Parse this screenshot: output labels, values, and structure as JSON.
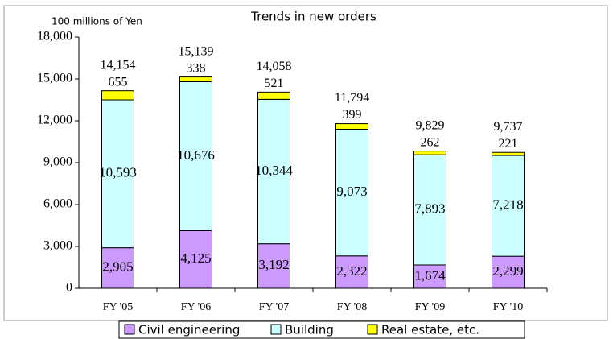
{
  "chart_data": {
    "type": "stacked_bar",
    "title": "Trends in new orders",
    "y_axis_label": "100 millions of Yen",
    "categories": [
      "FY '05",
      "FY '06",
      "FY '07",
      "FY '08",
      "FY '09",
      "FY '10"
    ],
    "series": [
      {
        "name": "Civil engineering",
        "color": "#cc99ff",
        "values": [
          2905,
          4125,
          3192,
          2322,
          1674,
          2299
        ],
        "value_labels": [
          "2,905",
          "4,125",
          "3,192",
          "2,322",
          "1,674",
          "2,299"
        ]
      },
      {
        "name": "Building",
        "color": "#ccffff",
        "values": [
          10593,
          10676,
          10344,
          9073,
          7893,
          7218
        ],
        "value_labels": [
          "10,593",
          "10,676",
          "10,344",
          "9,073",
          "7,893",
          "7,218"
        ]
      },
      {
        "name": "Real estate, etc.",
        "color": "#ffff00",
        "values": [
          655,
          338,
          521,
          399,
          262,
          221
        ]
      }
    ],
    "totals": [
      14154,
      15139,
      14058,
      11794,
      9829,
      9737
    ],
    "total_labels": [
      "14,154",
      "15,139",
      "14,058",
      "11,794",
      "9,829",
      "9,737"
    ],
    "total_color": "#1f4e79",
    "ylim": [
      0,
      18000
    ],
    "yticks": [
      {
        "value": 0,
        "label": "0"
      },
      {
        "value": 3000,
        "label": "3,000"
      },
      {
        "value": 6000,
        "label": "6,000"
      },
      {
        "value": 9000,
        "label": "9,000"
      },
      {
        "value": 12000,
        "label": "12,000"
      },
      {
        "value": 15000,
        "label": "15,000"
      },
      {
        "value": 18000,
        "label": "18,000"
      }
    ],
    "grid": false,
    "legend": "bottom"
  }
}
